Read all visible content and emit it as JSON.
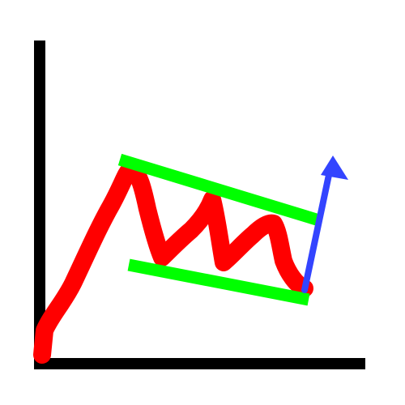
{
  "diagram": {
    "subject": "bull-flag-pattern",
    "colors": {
      "background": "#ffffff",
      "axes": "#000000",
      "price_line": "#ff0000",
      "channel_lines": "#00ff00",
      "breakout_arrow": "#3344ff"
    },
    "icons": [
      "price-line",
      "upper-channel-line",
      "lower-channel-line",
      "breakout-arrow-icon"
    ]
  }
}
